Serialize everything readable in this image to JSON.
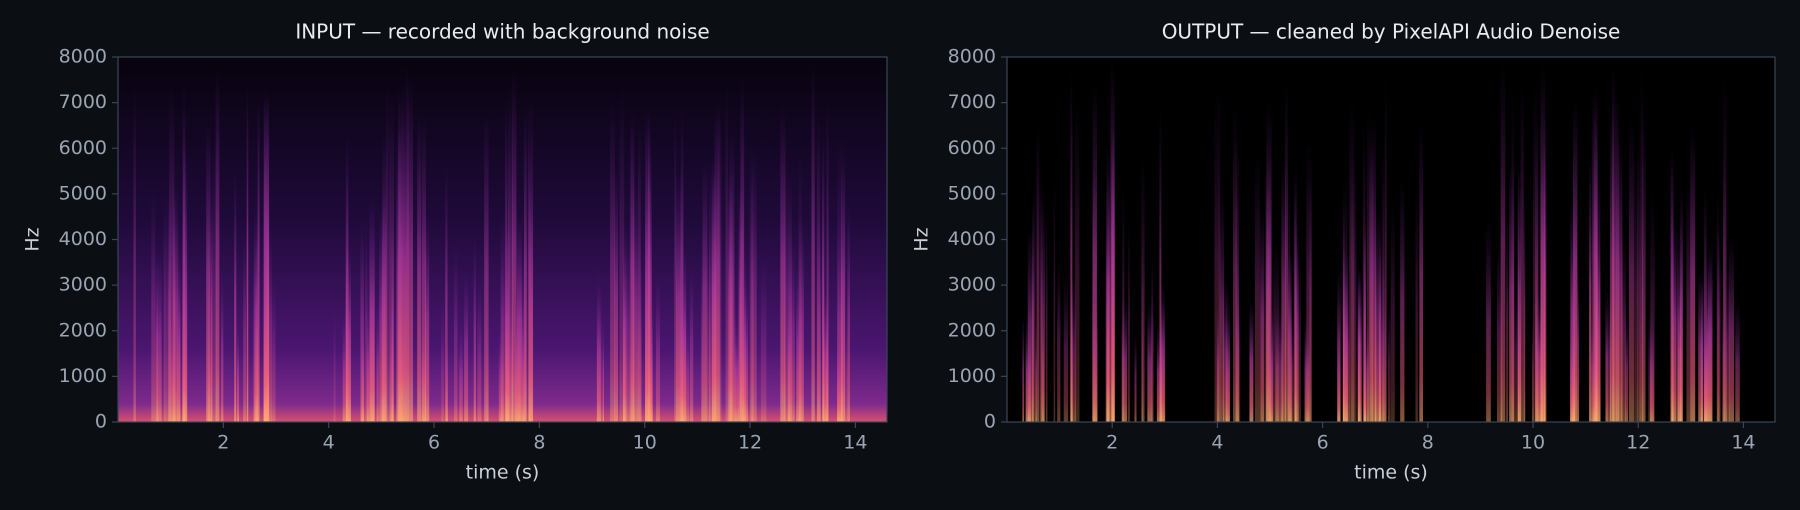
{
  "chart_data": [
    {
      "type": "spectrogram",
      "title": "INPUT — recorded with background noise",
      "xlabel": "time (s)",
      "ylabel": "Hz",
      "xlim": [
        0,
        14.6
      ],
      "xticks": [
        2,
        4,
        6,
        8,
        10,
        12,
        14
      ],
      "ylim": [
        0,
        8000
      ],
      "yticks": [
        0,
        1000,
        2000,
        3000,
        4000,
        5000,
        6000,
        7000,
        8000
      ]
    },
    {
      "type": "spectrogram",
      "title": "OUTPUT — cleaned by PixelAPI Audio Denoise",
      "xlabel": "time (s)",
      "ylabel": "Hz",
      "xlim": [
        0,
        14.6
      ],
      "xticks": [
        2,
        4,
        6,
        8,
        10,
        12,
        14
      ],
      "ylim": [
        0,
        8000
      ],
      "yticks": [
        0,
        1000,
        2000,
        3000,
        4000,
        5000,
        6000,
        7000,
        8000
      ]
    }
  ]
}
